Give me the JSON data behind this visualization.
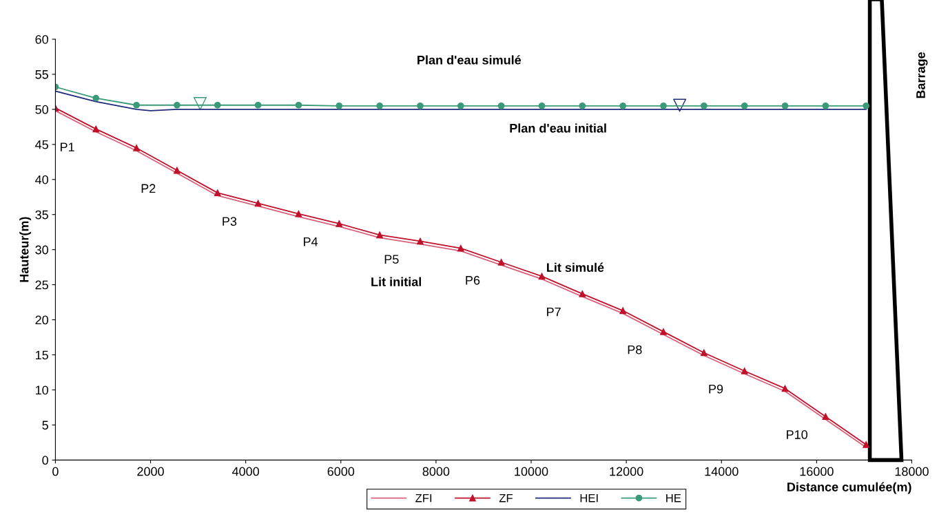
{
  "chart_data": {
    "type": "line",
    "xlabel": "Distance cumulée(m)",
    "ylabel": "Hauteur(m)",
    "x": [
      0,
      852,
      1704,
      2556,
      3408,
      4260,
      5112,
      5964,
      6816,
      7668,
      8520,
      9372,
      10224,
      11076,
      11928,
      12780,
      13632,
      14484,
      15336,
      16188,
      17040
    ],
    "series": [
      {
        "name": "ZFI",
        "color": "#d9607a",
        "marker": "none",
        "values": [
          49.8,
          46.8,
          44.1,
          40.9,
          37.7,
          36.2,
          34.7,
          33.3,
          31.7,
          30.8,
          29.8,
          27.8,
          25.8,
          23.3,
          20.9,
          17.9,
          14.9,
          12.3,
          9.8,
          5.8,
          1.8
        ]
      },
      {
        "name": "ZF",
        "color": "#c0102a",
        "marker": "triangle",
        "values": [
          50.2,
          47.2,
          44.5,
          41.3,
          38.1,
          36.6,
          35.1,
          33.7,
          32.1,
          31.2,
          30.2,
          28.2,
          26.2,
          23.7,
          21.3,
          18.3,
          15.3,
          12.7,
          10.2,
          6.2,
          2.2
        ]
      },
      {
        "name": "HEI",
        "color": "#1f2a7a",
        "marker": "none",
        "x": [
          0,
          852,
          1704,
          2000,
          2556,
          17040
        ],
        "values": [
          52.6,
          51.1,
          50.0,
          49.8,
          50.0,
          50.0
        ]
      },
      {
        "name": "HE",
        "color": "#3a9a78",
        "marker": "circle",
        "values": [
          53.2,
          51.6,
          50.6,
          50.6,
          50.6,
          50.6,
          50.6,
          50.5,
          50.5,
          50.5,
          50.5,
          50.5,
          50.5,
          50.5,
          50.5,
          50.5,
          50.5,
          50.5,
          50.5,
          50.5,
          50.5
        ]
      }
    ],
    "xlim": [
      0,
      18000
    ],
    "xticks": [
      0,
      2000,
      4000,
      6000,
      8000,
      10000,
      12000,
      14000,
      16000,
      18000
    ],
    "ylim": [
      0,
      60
    ],
    "yticks": [
      0,
      5,
      10,
      15,
      20,
      25,
      30,
      35,
      40,
      45,
      50,
      55,
      60
    ],
    "grid": false,
    "legend": "bottom",
    "annotations": [
      "Plan d'eau simulé",
      "Plan d'eau initial",
      "Lit initial",
      "Lit simulé",
      {
        "text": "P1",
        "x": 852,
        "y": 47.2
      },
      {
        "text": "P2",
        "x": 2556,
        "y": 41.3
      },
      {
        "text": "P3",
        "x": 4260,
        "y": 36.6
      },
      {
        "text": "P4",
        "x": 5964,
        "y": 33.7
      },
      {
        "text": "P5",
        "x": 7668,
        "y": 31.2
      },
      {
        "text": "P6",
        "x": 9372,
        "y": 28.2
      },
      {
        "text": "P7",
        "x": 11076,
        "y": 23.7
      },
      {
        "text": "P8",
        "x": 12780,
        "y": 18.3
      },
      {
        "text": "P9",
        "x": 14484,
        "y": 12.7
      },
      {
        "text": "P10",
        "x": 16188,
        "y": 6.2
      },
      "Barrage"
    ]
  }
}
